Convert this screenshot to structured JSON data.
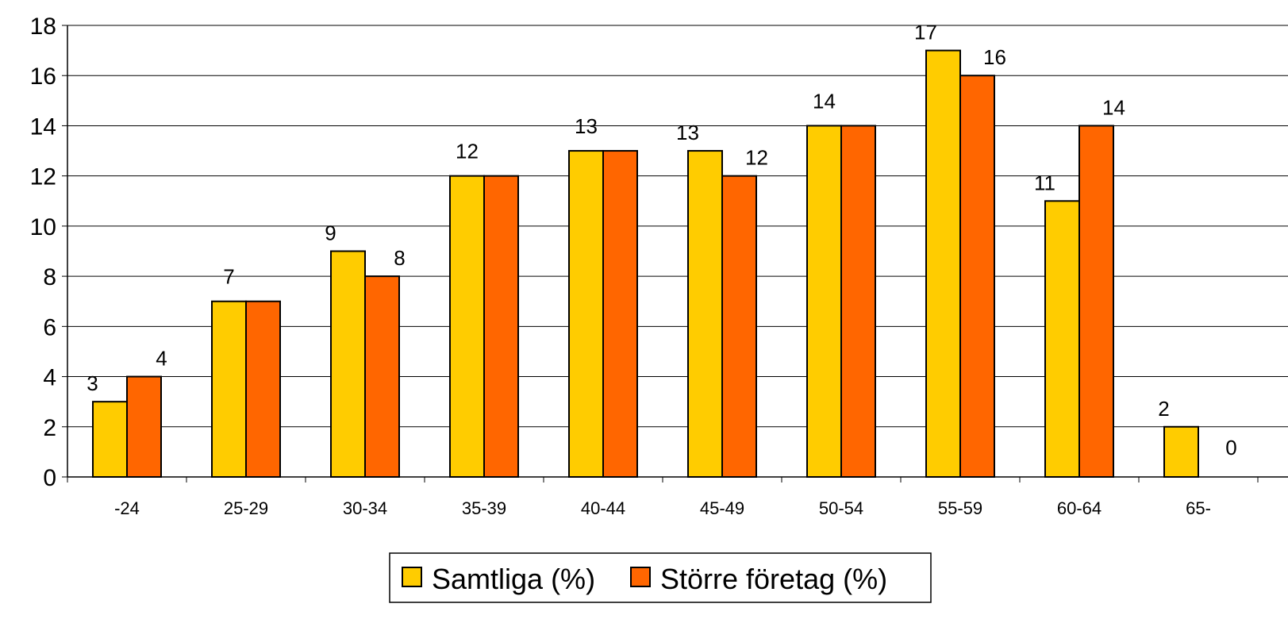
{
  "chart_data": {
    "type": "bar",
    "categories": [
      "-24",
      "25-29",
      "30-34",
      "35-39",
      "40-44",
      "45-49",
      "50-54",
      "55-59",
      "60-64",
      "65-"
    ],
    "series": [
      {
        "name": "Samtliga (%)",
        "values": [
          3,
          7,
          9,
          12,
          13,
          13,
          14,
          17,
          11,
          2
        ],
        "color": "#FFCC00"
      },
      {
        "name": "Större företag (%)",
        "values": [
          4,
          7,
          8,
          12,
          13,
          12,
          14,
          16,
          14,
          0
        ],
        "color": "#FF6600"
      }
    ],
    "ylim": [
      0,
      18
    ],
    "yticks": [
      0,
      2,
      4,
      6,
      8,
      10,
      12,
      14,
      16,
      18
    ],
    "grid": true,
    "legend": "bottom",
    "data_labels": [
      [
        "3",
        "7",
        "9",
        "12",
        "13",
        "13",
        "14",
        "17",
        "11",
        "2"
      ],
      [
        "4",
        "",
        "8",
        "",
        "",
        "12",
        "",
        "16",
        "14",
        "0"
      ]
    ]
  }
}
